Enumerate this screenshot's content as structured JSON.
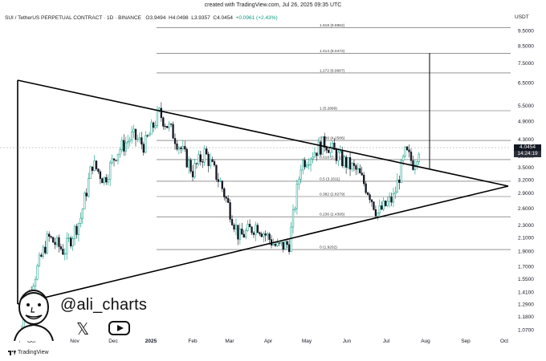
{
  "meta": {
    "created_text": "created with TradingView.com, Jul 26, 2025 09:35 UTC"
  },
  "header": {
    "symbol_text": "SUI / TetherUS PERPETUAL CONTRACT · 1D · BINANCE",
    "open_label": "O",
    "open_value": "3.9494",
    "high_label": "H",
    "high_value": "4.0498",
    "low_label": "L",
    "low_value": "3.9357",
    "close_label": "C",
    "close_value": "4.0454",
    "change": "+0.0961 (+2.43%)",
    "currency": "USDT"
  },
  "price_tag": {
    "price": "4.0454",
    "countdown": "14:24:19"
  },
  "branding": {
    "tradingview": "TradingView",
    "handle": "@ali_charts"
  },
  "colors": {
    "up": "#089981",
    "down": "#131722",
    "axis_text": "#131722",
    "fib_line": "#555555",
    "trendline": "#000000"
  },
  "chart_data": {
    "type": "candlestick",
    "title": "",
    "symbol": "SUI / TetherUS PERPETUAL CONTRACT",
    "interval": "1D",
    "exchange": "BINANCE",
    "y_scale": "log",
    "y_ticks": [
      "9.5000",
      "8.5000",
      "7.5000",
      "6.5000",
      "5.5000",
      "4.9000",
      "4.3000",
      "3.8000",
      "3.5000",
      "3.2000",
      "2.9000",
      "2.6000",
      "2.3000",
      "2.1000",
      "1.9000",
      "1.7000",
      "1.5500",
      "1.4100",
      "1.2900",
      "1.1800",
      "1.0700"
    ],
    "x_ticks": [
      "Oct",
      "Nov",
      "Dec",
      "2025",
      "Feb",
      "Mar",
      "Apr",
      "May",
      "Jun",
      "Jul",
      "Aug",
      "Sep",
      "Oct"
    ],
    "fib_levels": [
      {
        "label": "1.618 (9.6952)",
        "price": 9.6952
      },
      {
        "label": "1.414 (8.0472)",
        "price": 8.0472
      },
      {
        "label": "1.272 (6.9687)",
        "price": 6.9687
      },
      {
        "label": "1 (5.2899)",
        "price": 5.2899
      },
      {
        "label": "0.786 (4.2586)",
        "price": 4.2586
      },
      {
        "label": "0.618 (3.7023)",
        "price": 3.7023
      },
      {
        "label": "0.5 (3.1611)",
        "price": 3.1611
      },
      {
        "label": "0.382 (2.8279)",
        "price": 2.8279
      },
      {
        "label": "0.236 (2.4395)",
        "price": 2.4395
      },
      {
        "label": "0 (1.9202)",
        "price": 1.9202
      }
    ],
    "last_price": 4.0454,
    "ohlc_last": {
      "open": 3.9494,
      "high": 4.0498,
      "low": 3.9357,
      "close": 4.0454
    }
  }
}
